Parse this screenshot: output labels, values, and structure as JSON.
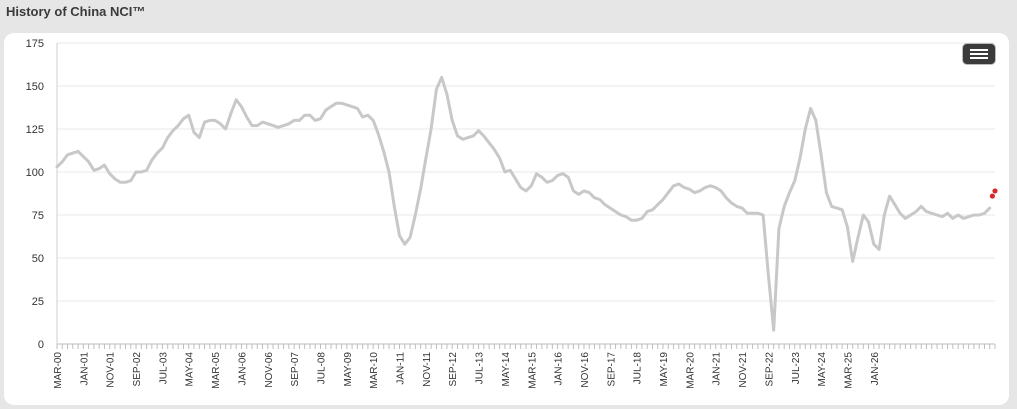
{
  "page": {
    "title": "History of China NCI™"
  },
  "colors": {
    "line": "#c8c8c8",
    "marker": "#d42a2a",
    "grid": "#e8e8e8",
    "panel": "#ffffff",
    "background": "#e6e6e6"
  },
  "icons": {
    "menu": "hamburger-menu-icon"
  },
  "chart_data": {
    "type": "line",
    "title": "History of China NCI™",
    "xlabel": "",
    "ylabel": "",
    "ylim": [
      0,
      175
    ],
    "yticks": [
      0,
      25,
      50,
      75,
      100,
      125,
      150,
      175
    ],
    "grid": "horizontal",
    "legend": "none",
    "xticks": [
      "MAR-00",
      "JAN-01",
      "NOV-01",
      "SEP-02",
      "JUL-03",
      "MAY-04",
      "MAR-05",
      "JAN-06",
      "NOV-06",
      "SEP-07",
      "JUL-08",
      "MAY-09",
      "MAR-10",
      "JAN-11",
      "NOV-11",
      "SEP-12",
      "JUL-13",
      "MAY-14",
      "MAR-15",
      "JAN-16",
      "NOV-16",
      "SEP-17",
      "JUL-18",
      "MAY-19",
      "MAR-20",
      "JAN-21",
      "NOV-21",
      "SEP-22",
      "JUL-23",
      "MAY-24",
      "MAR-25",
      "JAN-26"
    ],
    "series": [
      {
        "values": [
          [
            "2000-03",
            103
          ],
          [
            "2000-05",
            106
          ],
          [
            "2000-07",
            110
          ],
          [
            "2000-09",
            111
          ],
          [
            "2000-11",
            112
          ],
          [
            "2001-01",
            109
          ],
          [
            "2001-03",
            106
          ],
          [
            "2001-05",
            101
          ],
          [
            "2001-07",
            102
          ],
          [
            "2001-09",
            104
          ],
          [
            "2001-11",
            99
          ],
          [
            "2002-01",
            96
          ],
          [
            "2002-03",
            94
          ],
          [
            "2002-05",
            94
          ],
          [
            "2002-07",
            95
          ],
          [
            "2002-09",
            100
          ],
          [
            "2002-11",
            100
          ],
          [
            "2003-01",
            101
          ],
          [
            "2003-03",
            107
          ],
          [
            "2003-05",
            111
          ],
          [
            "2003-07",
            114
          ],
          [
            "2003-09",
            120
          ],
          [
            "2003-11",
            124
          ],
          [
            "2004-01",
            127
          ],
          [
            "2004-03",
            131
          ],
          [
            "2004-05",
            133
          ],
          [
            "2004-07",
            123
          ],
          [
            "2004-09",
            120
          ],
          [
            "2004-11",
            129
          ],
          [
            "2005-01",
            130
          ],
          [
            "2005-03",
            130
          ],
          [
            "2005-05",
            128
          ],
          [
            "2005-07",
            125
          ],
          [
            "2005-09",
            134
          ],
          [
            "2005-11",
            142
          ],
          [
            "2006-01",
            138
          ],
          [
            "2006-03",
            132
          ],
          [
            "2006-05",
            127
          ],
          [
            "2006-07",
            127
          ],
          [
            "2006-09",
            129
          ],
          [
            "2006-11",
            128
          ],
          [
            "2007-01",
            127
          ],
          [
            "2007-03",
            126
          ],
          [
            "2007-05",
            127
          ],
          [
            "2007-07",
            128
          ],
          [
            "2007-09",
            130
          ],
          [
            "2007-11",
            130
          ],
          [
            "2008-01",
            133
          ],
          [
            "2008-03",
            133
          ],
          [
            "2008-05",
            130
          ],
          [
            "2008-07",
            131
          ],
          [
            "2008-09",
            136
          ],
          [
            "2008-11",
            138
          ],
          [
            "2009-01",
            140
          ],
          [
            "2009-03",
            140
          ],
          [
            "2009-05",
            139
          ],
          [
            "2009-07",
            138
          ],
          [
            "2009-09",
            137
          ],
          [
            "2009-11",
            132
          ],
          [
            "2010-01",
            133
          ],
          [
            "2010-03",
            130
          ],
          [
            "2010-05",
            122
          ],
          [
            "2010-07",
            112
          ],
          [
            "2010-09",
            100
          ],
          [
            "2010-11",
            80
          ],
          [
            "2011-01",
            63
          ],
          [
            "2011-03",
            58
          ],
          [
            "2011-05",
            62
          ],
          [
            "2011-07",
            75
          ],
          [
            "2011-09",
            90
          ],
          [
            "2011-11",
            108
          ],
          [
            "2012-01",
            125
          ],
          [
            "2012-03",
            148
          ],
          [
            "2012-05",
            155
          ],
          [
            "2012-07",
            145
          ],
          [
            "2012-09",
            130
          ],
          [
            "2012-11",
            121
          ],
          [
            "2013-01",
            119
          ],
          [
            "2013-03",
            120
          ],
          [
            "2013-05",
            121
          ],
          [
            "2013-07",
            124
          ],
          [
            "2013-09",
            121
          ],
          [
            "2013-11",
            117
          ],
          [
            "2014-01",
            113
          ],
          [
            "2014-03",
            108
          ],
          [
            "2014-05",
            100
          ],
          [
            "2014-07",
            101
          ],
          [
            "2014-09",
            96
          ],
          [
            "2014-11",
            91
          ],
          [
            "2015-01",
            89
          ],
          [
            "2015-03",
            92
          ],
          [
            "2015-05",
            99
          ],
          [
            "2015-07",
            97
          ],
          [
            "2015-09",
            94
          ],
          [
            "2015-11",
            95
          ],
          [
            "2016-01",
            98
          ],
          [
            "2016-03",
            99
          ],
          [
            "2016-05",
            97
          ],
          [
            "2016-07",
            89
          ],
          [
            "2016-09",
            87
          ],
          [
            "2016-11",
            89
          ],
          [
            "2017-01",
            88
          ],
          [
            "2017-03",
            85
          ],
          [
            "2017-05",
            84
          ],
          [
            "2017-07",
            81
          ],
          [
            "2017-09",
            79
          ],
          [
            "2017-11",
            77
          ],
          [
            "2018-01",
            75
          ],
          [
            "2018-03",
            74
          ],
          [
            "2018-05",
            72
          ],
          [
            "2018-07",
            72
          ],
          [
            "2018-09",
            73
          ],
          [
            "2018-11",
            77
          ],
          [
            "2019-01",
            78
          ],
          [
            "2019-03",
            81
          ],
          [
            "2019-05",
            84
          ],
          [
            "2019-07",
            88
          ],
          [
            "2019-09",
            92
          ],
          [
            "2019-11",
            93
          ],
          [
            "2020-01",
            91
          ],
          [
            "2020-03",
            90
          ],
          [
            "2020-05",
            88
          ],
          [
            "2020-07",
            89
          ],
          [
            "2020-09",
            91
          ],
          [
            "2020-11",
            92
          ],
          [
            "2021-01",
            91
          ],
          [
            "2021-03",
            89
          ],
          [
            "2021-05",
            85
          ],
          [
            "2021-07",
            82
          ],
          [
            "2021-09",
            80
          ],
          [
            "2021-11",
            79
          ],
          [
            "2022-01",
            76
          ],
          [
            "2022-03",
            76
          ],
          [
            "2022-05",
            76
          ],
          [
            "2022-07",
            75
          ],
          [
            "2022-09",
            40
          ],
          [
            "2022-11",
            8
          ],
          [
            "2023-01",
            67
          ],
          [
            "2023-03",
            80
          ],
          [
            "2023-05",
            88
          ],
          [
            "2023-07",
            95
          ],
          [
            "2023-09",
            108
          ],
          [
            "2023-11",
            125
          ],
          [
            "2024-01",
            137
          ],
          [
            "2024-03",
            130
          ],
          [
            "2024-05",
            110
          ],
          [
            "2024-07",
            88
          ],
          [
            "2024-09",
            80
          ],
          [
            "2024-11",
            79
          ],
          [
            "2025-01",
            78
          ],
          [
            "2025-03",
            68
          ],
          [
            "2025-05",
            48
          ],
          [
            "2025-07",
            62
          ],
          [
            "2025-09",
            75
          ],
          [
            "2025-11",
            71
          ],
          [
            "2026-01",
            58
          ],
          [
            "2026-03",
            55
          ],
          [
            "2026-05",
            75
          ],
          [
            "2026-07",
            86
          ],
          [
            "2026-09",
            81
          ],
          [
            "2026-11",
            76
          ],
          [
            "2027-01",
            73
          ],
          [
            "2027-03",
            75
          ],
          [
            "2027-05",
            77
          ],
          [
            "2027-07",
            80
          ],
          [
            "2027-09",
            77
          ],
          [
            "2027-11",
            76
          ],
          [
            "2028-01",
            75
          ],
          [
            "2028-03",
            74
          ],
          [
            "2028-05",
            76
          ],
          [
            "2028-07",
            73
          ],
          [
            "2028-09",
            75
          ],
          [
            "2028-11",
            73
          ],
          [
            "2029-01",
            74
          ],
          [
            "2029-03",
            75
          ],
          [
            "2029-05",
            75
          ],
          [
            "2029-07",
            76
          ],
          [
            "2029-09",
            79
          ]
        ]
      },
      {
        "type": "scatter",
        "values": [
          [
            "2029-10",
            86
          ],
          [
            "2029-11",
            89
          ]
        ]
      }
    ]
  }
}
